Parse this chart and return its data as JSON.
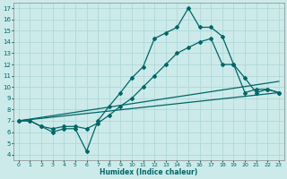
{
  "xlabel": "Humidex (Indice chaleur)",
  "bg_color": "#cceaea",
  "grid_color": "#b0d8d8",
  "line_color": "#006666",
  "xlim": [
    -0.5,
    23.5
  ],
  "ylim": [
    3.5,
    17.5
  ],
  "xticks": [
    0,
    1,
    2,
    3,
    4,
    5,
    6,
    7,
    8,
    9,
    10,
    11,
    12,
    13,
    14,
    15,
    16,
    17,
    18,
    19,
    20,
    21,
    22,
    23
  ],
  "yticks": [
    4,
    5,
    6,
    7,
    8,
    9,
    10,
    11,
    12,
    13,
    14,
    15,
    16,
    17
  ],
  "line1_markers": {
    "x": [
      0,
      1,
      2,
      3,
      4,
      5,
      6,
      7,
      8,
      9,
      10,
      11,
      12,
      13,
      14,
      15,
      16,
      17,
      18,
      19,
      20,
      21,
      22,
      23
    ],
    "y": [
      7.0,
      7.0,
      6.5,
      6.0,
      6.3,
      6.3,
      4.3,
      7.0,
      8.3,
      9.5,
      10.8,
      11.8,
      14.3,
      14.8,
      15.3,
      17.0,
      15.3,
      15.3,
      14.5,
      12.0,
      10.8,
      9.5,
      9.8,
      9.5
    ]
  },
  "line2_markers": {
    "x": [
      0,
      1,
      2,
      3,
      4,
      5,
      6,
      7,
      8,
      9,
      10,
      11,
      12,
      13,
      14,
      15,
      16,
      17,
      18,
      19,
      20,
      21,
      22,
      23
    ],
    "y": [
      7.0,
      7.0,
      6.5,
      6.3,
      6.5,
      6.5,
      6.3,
      6.8,
      7.5,
      8.3,
      9.0,
      10.0,
      11.0,
      12.0,
      13.0,
      13.5,
      14.0,
      14.3,
      12.0,
      12.0,
      9.5,
      9.8,
      9.8,
      9.5
    ]
  },
  "line3_plain": {
    "x": [
      0,
      23
    ],
    "y": [
      7.0,
      10.5
    ]
  },
  "line4_plain": {
    "x": [
      0,
      23
    ],
    "y": [
      7.0,
      9.5
    ]
  }
}
